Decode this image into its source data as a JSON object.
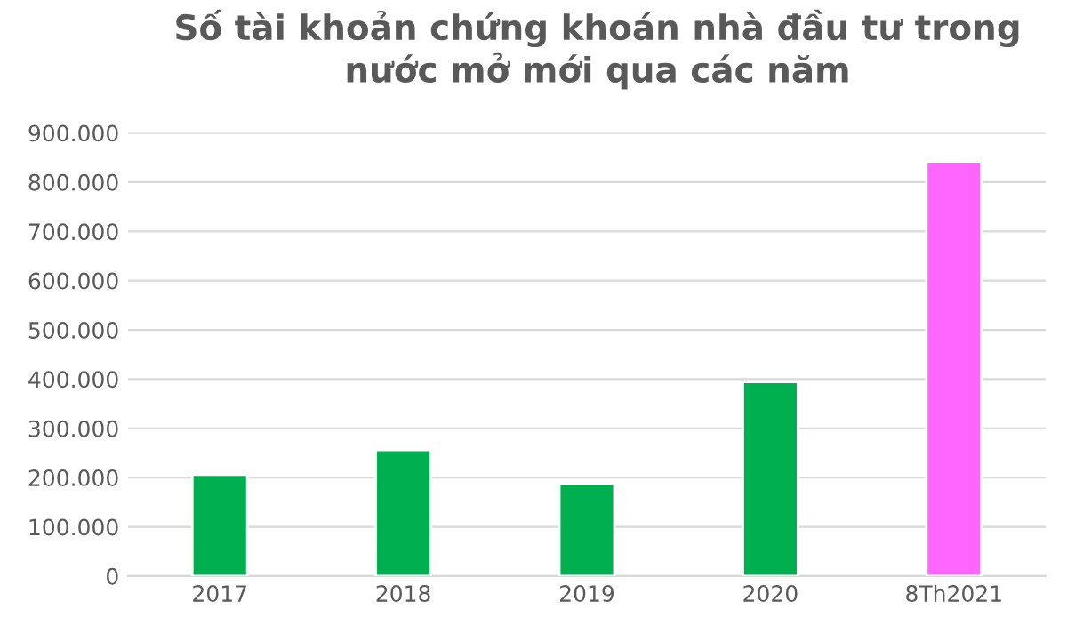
{
  "chart_data": {
    "type": "bar",
    "title": "Số tài khoản chứng khoán nhà đầu tư trong nước mở mới qua các năm",
    "categories": [
      "2017",
      "2018",
      "2019",
      "2020",
      "8Th2021"
    ],
    "values": [
      206000,
      256000,
      188000,
      394000,
      842000
    ],
    "colors": [
      "#00b050",
      "#00b050",
      "#00b050",
      "#00b050",
      "#ff66ff"
    ],
    "ylim": [
      0,
      900000
    ],
    "yticks": [
      {
        "value": 0,
        "label": "0"
      },
      {
        "value": 100000,
        "label": "100.000"
      },
      {
        "value": 200000,
        "label": "200.000"
      },
      {
        "value": 300000,
        "label": "300.000"
      },
      {
        "value": 400000,
        "label": "400.000"
      },
      {
        "value": 500000,
        "label": "500.000"
      },
      {
        "value": 600000,
        "label": "600.000"
      },
      {
        "value": 700000,
        "label": "700.000"
      },
      {
        "value": 800000,
        "label": "800.000"
      },
      {
        "value": 900000,
        "label": "900.000"
      }
    ],
    "grid": "y",
    "legend": false
  }
}
